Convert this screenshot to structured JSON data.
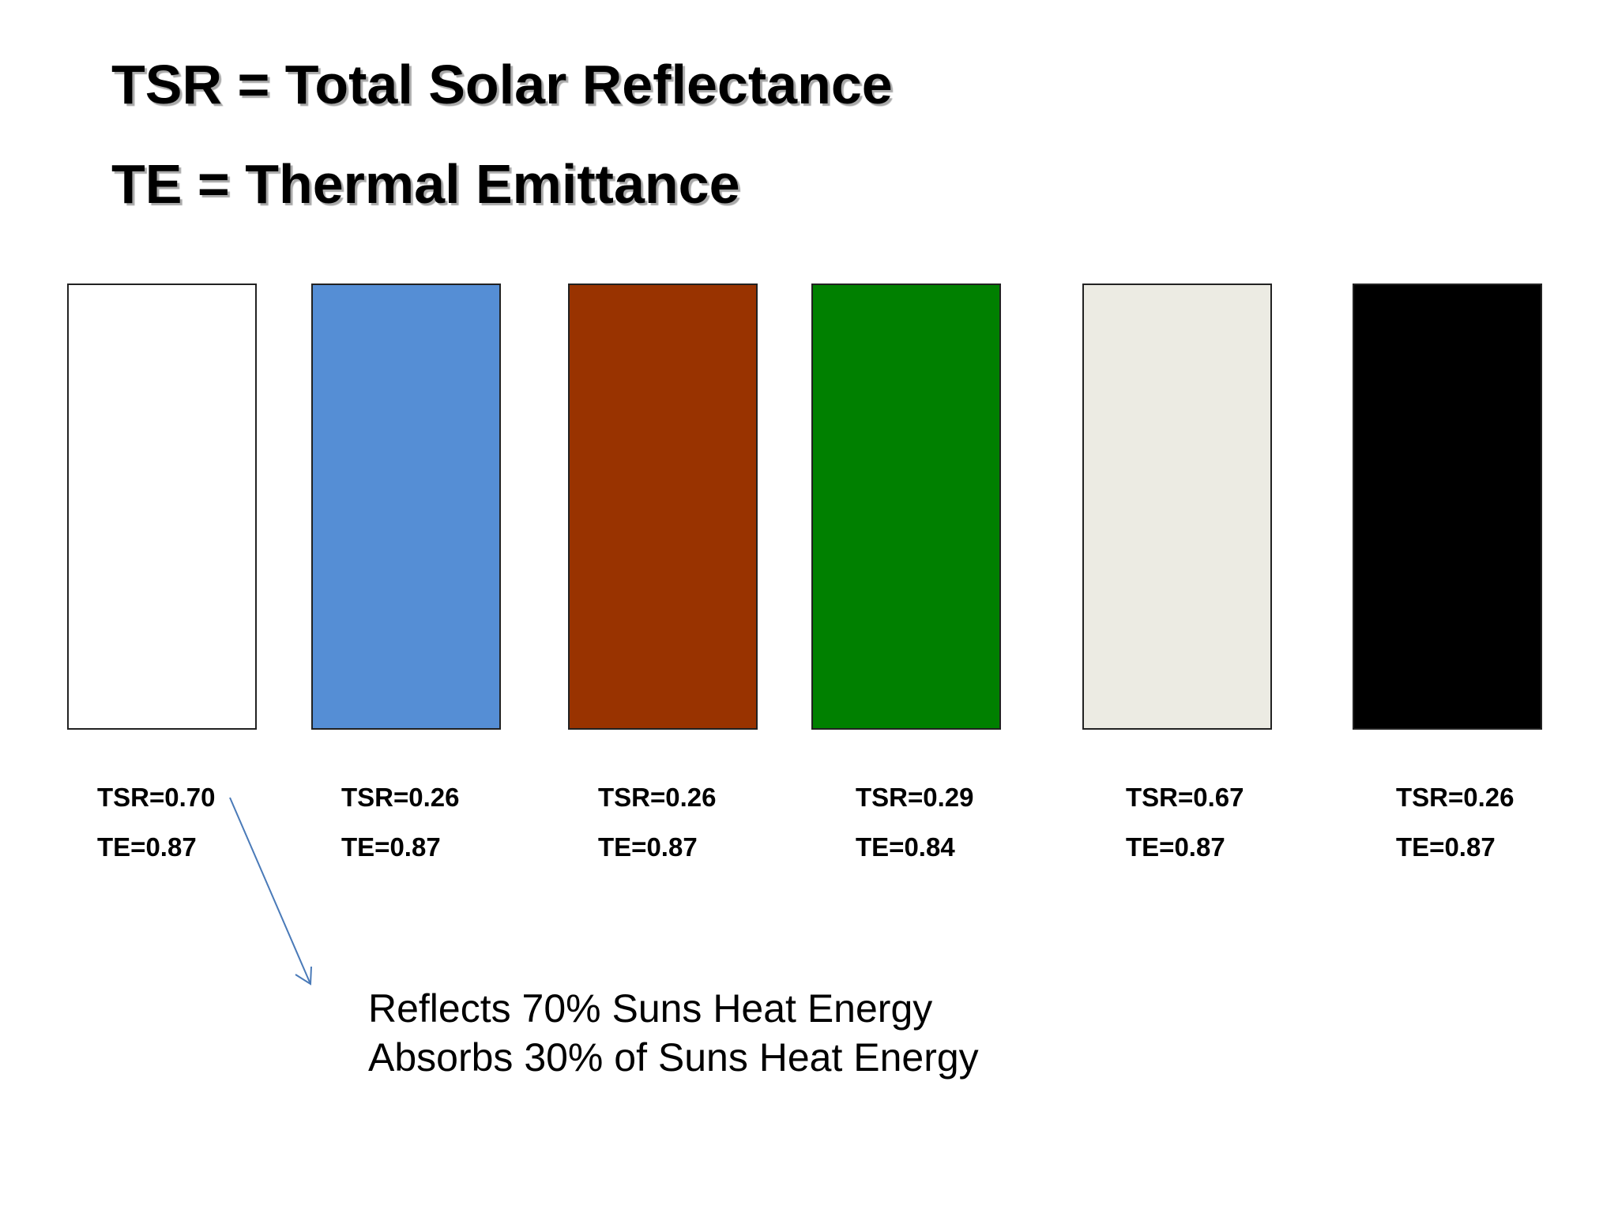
{
  "headings": {
    "line1": "TSR = Total Solar Reflectance",
    "line2": "TE = Thermal Emittance"
  },
  "swatches": [
    {
      "color": "#ffffff",
      "tsr": "TSR=0.70",
      "te": "TE=0.87"
    },
    {
      "color": "#558ed5",
      "tsr": "TSR=0.26",
      "te": "TE=0.87"
    },
    {
      "color": "#993300",
      "tsr": "TSR=0.26",
      "te": "TE=0.87"
    },
    {
      "color": "#008000",
      "tsr": "TSR=0.29",
      "te": "TE=0.84"
    },
    {
      "color": "#ecebe3",
      "tsr": "TSR=0.67",
      "te": "TE=0.87"
    },
    {
      "color": "#000000",
      "tsr": "TSR=0.26",
      "te": "TE=0.87"
    }
  ],
  "callout": {
    "line1": "Reflects 70% Suns Heat Energy",
    "line2": "Absorbs 30% of Suns Heat Energy",
    "arrow_color": "#4a7ab8"
  }
}
